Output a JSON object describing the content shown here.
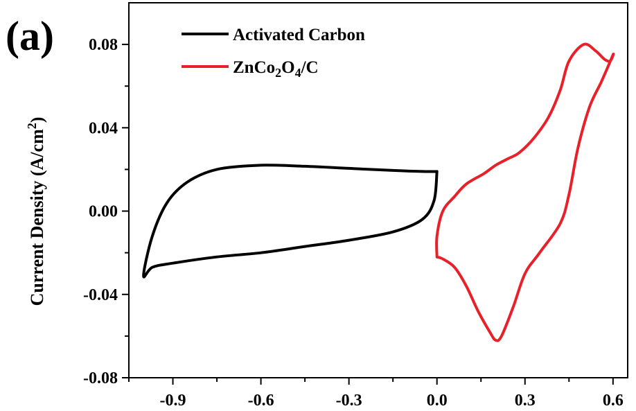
{
  "chart_data": {
    "type": "line",
    "panel_label": "(a)",
    "title": "",
    "xlabel": "",
    "ylabel": "Current Density (A/cm",
    "ylabel_sup": "2",
    "ylabel_close": ")",
    "xlim": [
      -1.05,
      0.65
    ],
    "ylim": [
      -0.08,
      0.1
    ],
    "x_ticks": [
      -0.9,
      -0.6,
      -0.3,
      0.0,
      0.3,
      0.6
    ],
    "x_tick_labels": [
      "-0.9",
      "-0.6",
      "-0.3",
      "0.0",
      "0.3",
      "0.6"
    ],
    "y_ticks": [
      -0.08,
      -0.04,
      0.0,
      0.04,
      0.08
    ],
    "y_tick_labels": [
      "-0.08",
      "-0.04",
      "0.00",
      "0.04",
      "0.08"
    ],
    "grid": false,
    "legend_position": "top-left",
    "series": [
      {
        "name": "Activated Carbon",
        "color": "#000000",
        "x": [
          0.0,
          -0.05,
          -0.15,
          -0.3,
          -0.45,
          -0.6,
          -0.75,
          -0.85,
          -0.92,
          -0.97,
          -1.0,
          -0.97,
          -0.9,
          -0.75,
          -0.6,
          -0.45,
          -0.3,
          -0.15,
          -0.05,
          -0.01,
          0.0
        ],
        "y": [
          0.019,
          0.019,
          0.0195,
          0.0205,
          0.0215,
          0.022,
          0.02,
          0.014,
          0.004,
          -0.012,
          -0.031,
          -0.027,
          -0.025,
          -0.022,
          -0.02,
          -0.017,
          -0.014,
          -0.01,
          -0.004,
          0.005,
          0.019
        ]
      },
      {
        "name": "ZnCo",
        "name_sub1": "2",
        "name_mid": "O",
        "name_sub2": "4",
        "name_end": "/C",
        "color": "#e8202a",
        "x": [
          0.0,
          0.02,
          0.06,
          0.1,
          0.14,
          0.18,
          0.2,
          0.22,
          0.26,
          0.3,
          0.35,
          0.42,
          0.45,
          0.48,
          0.52,
          0.56,
          0.6,
          0.59,
          0.57,
          0.54,
          0.5,
          0.45,
          0.42,
          0.38,
          0.33,
          0.28,
          0.24,
          0.2,
          0.16,
          0.1,
          0.06,
          0.02,
          0.0,
          0.0
        ],
        "y": [
          -0.022,
          -0.023,
          -0.027,
          -0.036,
          -0.048,
          -0.058,
          -0.062,
          -0.06,
          -0.046,
          -0.03,
          -0.02,
          -0.006,
          0.008,
          0.03,
          0.05,
          0.062,
          0.075,
          0.072,
          0.073,
          0.077,
          0.08,
          0.072,
          0.058,
          0.045,
          0.035,
          0.028,
          0.025,
          0.022,
          0.018,
          0.013,
          0.007,
          0.0,
          -0.012,
          -0.022
        ]
      }
    ]
  }
}
